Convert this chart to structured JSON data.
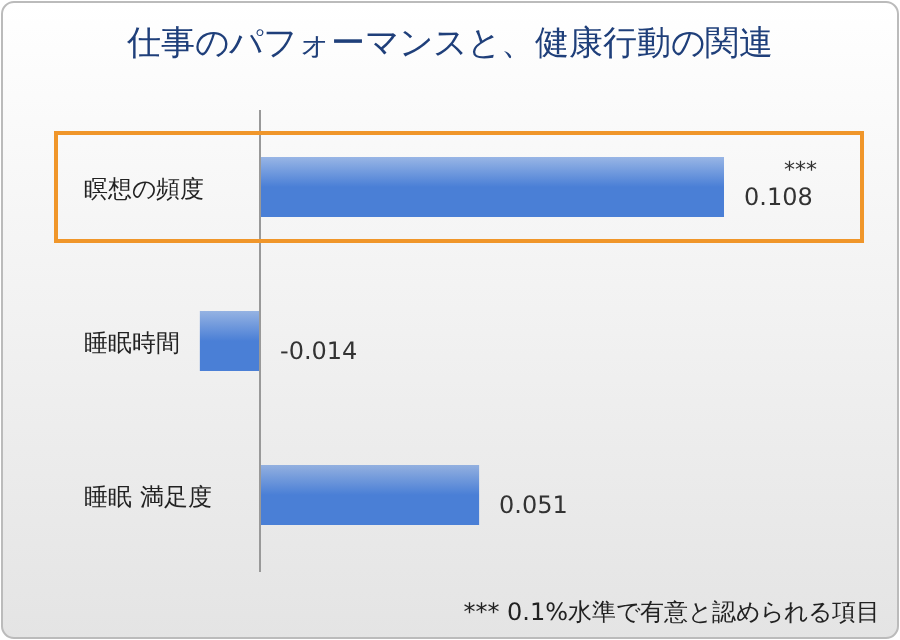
{
  "chart_data": {
    "type": "bar",
    "orientation": "horizontal",
    "title": "仕事のパフォーマンスと、健康行動の関連",
    "categories": [
      "瞑想の頻度",
      "睡眠時間",
      "睡眠 満足度"
    ],
    "values": [
      0.108,
      -0.014,
      0.051
    ],
    "color": "#4a7fd6",
    "data_labels": true,
    "annotations": [
      {
        "text": "***",
        "x": 0.108,
        "y": "瞑想の頻度"
      },
      "*** 0.1%水準で有意と認められる項目"
    ]
  }
}
